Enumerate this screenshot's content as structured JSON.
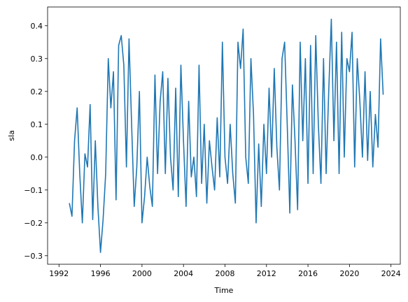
{
  "chart_data": {
    "type": "line",
    "xlabel": "Time",
    "ylabel": "sla",
    "x": [
      1993,
      1993.25,
      1993.5,
      1993.75,
      1994,
      1994.25,
      1994.5,
      1994.75,
      1995,
      1995.25,
      1995.5,
      1995.75,
      1996,
      1996.25,
      1996.5,
      1996.75,
      1997,
      1997.25,
      1997.5,
      1997.75,
      1998,
      1998.25,
      1998.5,
      1998.75,
      1999,
      1999.25,
      1999.5,
      1999.75,
      2000,
      2000.25,
      2000.5,
      2000.75,
      2001,
      2001.25,
      2001.5,
      2001.75,
      2002,
      2002.25,
      2002.5,
      2002.75,
      2003,
      2003.25,
      2003.5,
      2003.75,
      2004,
      2004.25,
      2004.5,
      2004.75,
      2005,
      2005.25,
      2005.5,
      2005.75,
      2006,
      2006.25,
      2006.5,
      2006.75,
      2007,
      2007.25,
      2007.5,
      2007.75,
      2008,
      2008.25,
      2008.5,
      2008.75,
      2009,
      2009.25,
      2009.5,
      2009.75,
      2010,
      2010.25,
      2010.5,
      2010.75,
      2011,
      2011.25,
      2011.5,
      2011.75,
      2012,
      2012.25,
      2012.5,
      2012.75,
      2013,
      2013.25,
      2013.5,
      2013.75,
      2014,
      2014.25,
      2014.5,
      2014.75,
      2015,
      2015.25,
      2015.5,
      2015.75,
      2016,
      2016.25,
      2016.5,
      2016.75,
      2017,
      2017.25,
      2017.5,
      2017.75,
      2018,
      2018.25,
      2018.5,
      2018.75,
      2019,
      2019.25,
      2019.5,
      2019.75,
      2020,
      2020.25,
      2020.5,
      2020.75,
      2021,
      2021.25,
      2021.5,
      2021.75,
      2022,
      2022.25,
      2022.5,
      2022.75,
      2023,
      2023.25
    ],
    "series": [
      {
        "name": "sla",
        "color": "#1f77b4",
        "values": [
          -0.14,
          -0.18,
          0.05,
          0.15,
          -0.05,
          -0.2,
          0.01,
          -0.03,
          0.16,
          -0.19,
          0.05,
          -0.15,
          -0.29,
          -0.19,
          -0.05,
          0.3,
          0.15,
          0.26,
          -0.13,
          0.34,
          0.37,
          0.28,
          -0.03,
          0.36,
          0.1,
          -0.15,
          -0.03,
          0.2,
          -0.2,
          -0.12,
          0.0,
          -0.09,
          -0.15,
          0.25,
          -0.05,
          0.17,
          0.26,
          -0.05,
          0.24,
          0.0,
          -0.1,
          0.21,
          -0.12,
          0.28,
          0.05,
          -0.15,
          0.17,
          -0.06,
          0.0,
          -0.12,
          0.28,
          -0.08,
          0.1,
          -0.14,
          0.05,
          -0.03,
          -0.1,
          0.12,
          -0.06,
          0.35,
          0.0,
          -0.08,
          0.1,
          -0.05,
          -0.14,
          0.35,
          0.27,
          0.39,
          0.0,
          -0.08,
          0.3,
          0.13,
          -0.2,
          0.04,
          -0.15,
          0.1,
          -0.05,
          0.21,
          0.0,
          0.27,
          0.03,
          -0.1,
          0.3,
          0.35,
          0.1,
          -0.17,
          0.22,
          0.05,
          -0.16,
          0.35,
          0.05,
          0.3,
          -0.08,
          0.34,
          -0.05,
          0.37,
          0.1,
          -0.08,
          0.3,
          -0.05,
          0.2,
          0.42,
          0.05,
          0.35,
          -0.05,
          0.38,
          0.0,
          0.3,
          0.26,
          0.38,
          -0.03,
          0.3,
          0.17,
          0.0,
          0.26,
          -0.01,
          0.2,
          -0.03,
          0.13,
          0.03,
          0.36,
          0.19
        ]
      }
    ],
    "xlim": [
      1990.9,
      2024.9
    ],
    "xticks": [
      1992,
      1996,
      2000,
      2004,
      2008,
      2012,
      2016,
      2020,
      2024
    ],
    "ylim": [
      -0.326,
      0.457
    ],
    "yticks": [
      {
        "value": -0.3,
        "label": "−0.3"
      },
      {
        "value": -0.2,
        "label": "−0.2"
      },
      {
        "value": -0.1,
        "label": "−0.1"
      },
      {
        "value": 0,
        "label": "0.0"
      },
      0.1,
      0.2,
      0.3,
      0.4
    ],
    "grid": false
  }
}
